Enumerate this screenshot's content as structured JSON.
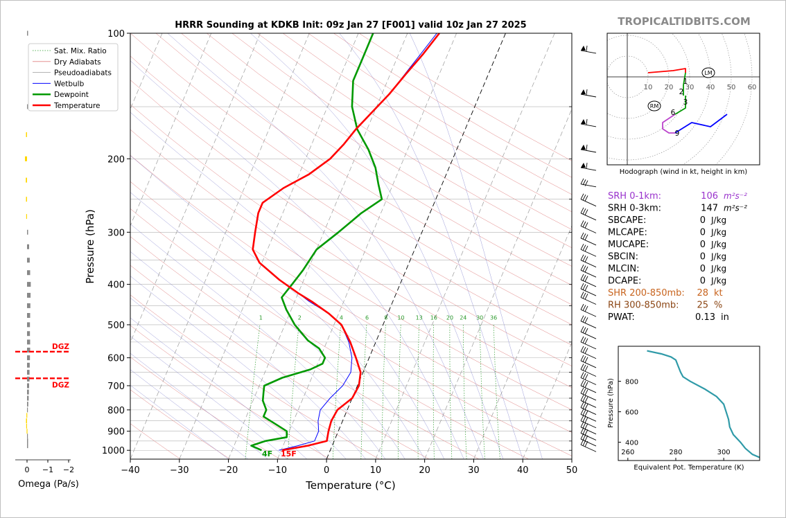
{
  "title": "HRRR Sounding at KDKB Init: 09z Jan 27 [F001] valid 10z Jan 27 2025",
  "watermark": "TROPICALTIDBITS.COM",
  "colors": {
    "temperature": "#ff0000",
    "dewpoint": "#009900",
    "wetbulb": "#0000ff",
    "srh01": "#9932cc",
    "shear": "#c8641e",
    "rh": "#8b4513",
    "theta_e": "#2f9aa8",
    "omega_neg": "#888888",
    "omega_pos": "#ffd700"
  },
  "legend": [
    "Sat. Mix. Ratio",
    "Dry Adiabats",
    "Pseudoadiabats",
    "Wetbulb",
    "Dewpoint",
    "Temperature"
  ],
  "skewt": {
    "xlabel": "Temperature (°C)",
    "ylabel": "Pressure (hPa)",
    "x_ticks": [
      "−40",
      "−30",
      "−20",
      "−10",
      "0",
      "10",
      "20",
      "30",
      "40",
      "50"
    ],
    "y_ticks": [
      "100",
      "200",
      "300",
      "400",
      "500",
      "600",
      "700",
      "800",
      "900",
      "1000"
    ],
    "surface_dewpoint_label": "4F",
    "surface_temp_label": "15F",
    "mixing_ratio_labels": [
      "1",
      "2",
      "4",
      "6",
      "8",
      "10",
      "13",
      "16",
      "20",
      "24",
      "30",
      "36"
    ]
  },
  "omega": {
    "xlabel": "Omega (Pa/s)",
    "x_ticks": [
      "0",
      "−1",
      "−2"
    ],
    "dgz_label": "DGZ"
  },
  "hodograph": {
    "caption": "Hodograph (wind in kt, height in km)",
    "ring_labels": [
      "10",
      "20",
      "30",
      "40",
      "50",
      "60"
    ],
    "height_labels": [
      "1",
      "2",
      "3",
      "6",
      "9"
    ],
    "markers": [
      "RM",
      "LM"
    ]
  },
  "indices": [
    {
      "label": "SRH 0-1km:",
      "value": "106",
      "unit": "m²s⁻²",
      "color": "srh01"
    },
    {
      "label": "SRH 0-3km:",
      "value": "147",
      "unit": "m²s⁻²",
      "color": "black"
    },
    {
      "label": "SBCAPE:",
      "value": "0",
      "unit": "J/kg",
      "color": "black"
    },
    {
      "label": "MLCAPE:",
      "value": "0",
      "unit": "J/kg",
      "color": "black"
    },
    {
      "label": "MUCAPE:",
      "value": "0",
      "unit": "J/kg",
      "color": "black"
    },
    {
      "label": "SBCIN:",
      "value": "0",
      "unit": "J/kg",
      "color": "black"
    },
    {
      "label": "MLCIN:",
      "value": "0",
      "unit": "J/kg",
      "color": "black"
    },
    {
      "label": "DCAPE:",
      "value": "0",
      "unit": "J/kg",
      "color": "black"
    },
    {
      "label": "SHR 200-850mb:",
      "value": "28",
      "unit": "kt",
      "color": "shear"
    },
    {
      "label": "RH 300-850mb:",
      "value": "25",
      "unit": "%",
      "color": "rh"
    },
    {
      "label": "PWAT:",
      "value": "0.13",
      "unit": "in",
      "color": "black"
    }
  ],
  "theta_e_panel": {
    "xlabel": "Equivalent Pot. Temperature (K)",
    "ylabel": "Pressure (hPa)",
    "x_ticks": [
      "260",
      "280",
      "300"
    ],
    "y_ticks": [
      "400",
      "600",
      "800"
    ]
  },
  "chart_data": [
    {
      "type": "line",
      "name": "skew-t",
      "xlim": [
        -40,
        50
      ],
      "ylim": [
        1050,
        100
      ],
      "y_scale": "log",
      "series": [
        {
          "name": "Temperature",
          "points": [
            [
              -9.8,
              1000
            ],
            [
              -5,
              975
            ],
            [
              -1.5,
              950
            ],
            [
              -2,
              900
            ],
            [
              -2.3,
              850
            ],
            [
              -2,
              800
            ],
            [
              0,
              750
            ],
            [
              0.3,
              700
            ],
            [
              -0.5,
              650
            ],
            [
              -2.7,
              600
            ],
            [
              -5.2,
              550
            ],
            [
              -8.5,
              500
            ],
            [
              -12,
              470
            ],
            [
              -16.5,
              440
            ],
            [
              -20,
              420
            ],
            [
              -25,
              390
            ],
            [
              -30.5,
              355
            ],
            [
              -33,
              330
            ],
            [
              -34,
              300
            ],
            [
              -35,
              270
            ],
            [
              -35,
              255
            ],
            [
              -32,
              235
            ],
            [
              -28,
              218
            ],
            [
              -25,
              200
            ],
            [
              -23.5,
              185
            ],
            [
              -22.3,
              170
            ],
            [
              -20.5,
              155
            ],
            [
              -18.5,
              140
            ],
            [
              -16.8,
              125
            ],
            [
              -15,
              112
            ],
            [
              -13.5,
              100
            ]
          ]
        },
        {
          "name": "Dewpoint",
          "points": [
            [
              -14,
              1000
            ],
            [
              -16.5,
              975
            ],
            [
              -14,
              950
            ],
            [
              -10,
              930
            ],
            [
              -10.5,
              900
            ],
            [
              -13,
              870
            ],
            [
              -16.5,
              830
            ],
            [
              -16.5,
              800
            ],
            [
              -18,
              760
            ],
            [
              -18.5,
              730
            ],
            [
              -19,
              700
            ],
            [
              -16,
              670
            ],
            [
              -11,
              640
            ],
            [
              -9,
              620
            ],
            [
              -9,
              600
            ],
            [
              -11,
              570
            ],
            [
              -14,
              545
            ],
            [
              -18,
              500
            ],
            [
              -21,
              460
            ],
            [
              -23,
              430
            ],
            [
              -22,
              400
            ],
            [
              -21,
              370
            ],
            [
              -20,
              330
            ],
            [
              -17,
              300
            ],
            [
              -14,
              270
            ],
            [
              -11,
              250
            ],
            [
              -13,
              230
            ],
            [
              -15,
              210
            ],
            [
              -18,
              190
            ],
            [
              -22,
              170
            ],
            [
              -25,
              150
            ],
            [
              -27,
              130
            ],
            [
              -27,
              115
            ],
            [
              -27,
              100
            ]
          ]
        },
        {
          "name": "Wetbulb",
          "points": [
            [
              -10.5,
              1000
            ],
            [
              -7,
              975
            ],
            [
              -4,
              950
            ],
            [
              -4,
              900
            ],
            [
              -5,
              850
            ],
            [
              -5.5,
              800
            ],
            [
              -4.5,
              750
            ],
            [
              -3,
              700
            ],
            [
              -2.5,
              650
            ],
            [
              -3.5,
              600
            ],
            [
              -5.5,
              550
            ],
            [
              -8.5,
              500
            ],
            [
              -12,
              470
            ],
            [
              -17,
              440
            ],
            [
              -20,
              420
            ],
            [
              -25,
              390
            ],
            [
              -30.5,
              355
            ],
            [
              -33,
              330
            ],
            [
              -34,
              300
            ],
            [
              -35,
              270
            ],
            [
              -35,
              255
            ],
            [
              -32,
              235
            ],
            [
              -28,
              218
            ],
            [
              -25,
              200
            ],
            [
              -23.5,
              185
            ],
            [
              -22.3,
              170
            ],
            [
              -20.5,
              155
            ],
            [
              -18.5,
              140
            ],
            [
              -17,
              125
            ],
            [
              -15.5,
              112
            ],
            [
              -14,
              100
            ]
          ]
        }
      ]
    },
    {
      "type": "bar",
      "name": "omega",
      "xlim": [
        0.3,
        -2
      ],
      "y_values_hPa": [
        100,
        150,
        175,
        200,
        225,
        250,
        275,
        300,
        325,
        350,
        375,
        400,
        425,
        450,
        475,
        500,
        525,
        550,
        575,
        600,
        625,
        650,
        675,
        700,
        725,
        750,
        775,
        800,
        825,
        850,
        875,
        900,
        925,
        950,
        975
      ],
      "values": [
        -0.05,
        -0.02,
        0.05,
        0.1,
        0.06,
        0.05,
        0.04,
        -0.05,
        -0.1,
        -0.13,
        -0.15,
        -0.18,
        -0.17,
        -0.16,
        -0.15,
        -0.14,
        -0.14,
        -0.15,
        -0.15,
        -0.14,
        -0.13,
        -0.12,
        -0.12,
        -0.1,
        -0.09,
        -0.08,
        -0.06,
        -0.02,
        0.03,
        0.05,
        0.04,
        0.02,
        -0.04,
        -0.05,
        -0.05
      ],
      "dgz_levels_hPa": [
        580,
        672
      ]
    },
    {
      "type": "line",
      "name": "hodograph",
      "rings_kt": [
        10,
        20,
        30,
        40,
        50,
        60
      ],
      "series": [
        {
          "name": "0-1km",
          "points": [
            [
              10,
              2
            ],
            [
              22,
              3
            ],
            [
              28,
              4
            ],
            [
              28,
              2
            ]
          ]
        },
        {
          "name": "1-3km",
          "points": [
            [
              28,
              2
            ],
            [
              27,
              -4
            ],
            [
              27,
              -9
            ]
          ]
        },
        {
          "name": "3-6km",
          "points": [
            [
              28,
              -9
            ],
            [
              28,
              -15
            ],
            [
              23,
              -18
            ]
          ]
        },
        {
          "name": "6-9km",
          "points": [
            [
              23,
              -18
            ],
            [
              17,
              -22
            ],
            [
              17,
              -25
            ],
            [
              20,
              -27
            ],
            [
              23,
              -27
            ]
          ]
        },
        {
          "name": "9+km",
          "points": [
            [
              23,
              -27
            ],
            [
              31,
              -22
            ],
            [
              40,
              -24
            ],
            [
              48,
              -18
            ]
          ]
        }
      ],
      "storm_motion": {
        "RM": [
          13,
          -14
        ],
        "LM": [
          39,
          2
        ]
      }
    },
    {
      "type": "line",
      "name": "theta-e",
      "xlim": [
        256,
        315
      ],
      "ylim": [
        1030,
        280
      ],
      "series": [
        {
          "name": "Equivalent Pot. Temperature",
          "points": [
            [
              268,
              1000
            ],
            [
              274,
              980
            ],
            [
              278,
              960
            ],
            [
              280,
              940
            ],
            [
              281,
              900
            ],
            [
              282,
              860
            ],
            [
              283,
              830
            ],
            [
              286,
              800
            ],
            [
              292,
              750
            ],
            [
              297,
              700
            ],
            [
              300,
              650
            ],
            [
              301,
              600
            ],
            [
              302,
              550
            ],
            [
              302.5,
              500
            ],
            [
              304,
              450
            ],
            [
              307,
              400
            ],
            [
              309,
              360
            ],
            [
              312,
              320
            ],
            [
              315,
              300
            ]
          ]
        }
      ]
    }
  ]
}
